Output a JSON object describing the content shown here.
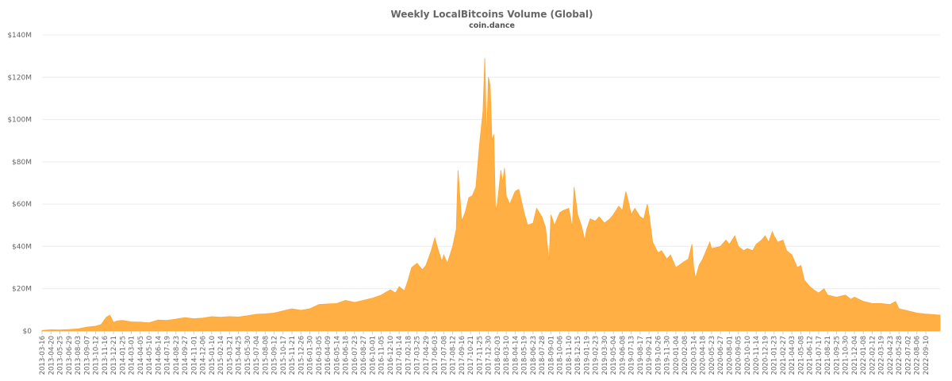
{
  "chart_data": {
    "type": "area",
    "title": "Weekly LocalBitcoins Volume (Global)",
    "subtitle": "coin.dance",
    "xlabel": "",
    "ylabel": "",
    "ylim": [
      0,
      140000000
    ],
    "yticks": [
      {
        "value": 0,
        "label": "$0"
      },
      {
        "value": 20000000,
        "label": "$20M"
      },
      {
        "value": 40000000,
        "label": "$40M"
      },
      {
        "value": 60000000,
        "label": "$60M"
      },
      {
        "value": 80000000,
        "label": "$80M"
      },
      {
        "value": 100000000,
        "label": "$100M"
      },
      {
        "value": 120000000,
        "label": "$120M"
      },
      {
        "value": 140000000,
        "label": "$140M"
      }
    ],
    "xlim": [
      "2013-03-16",
      "2022-11-05"
    ],
    "grid": true,
    "legend": "none",
    "color": "#FFA833",
    "xticks": [
      "2013-03-16",
      "2013-04-20",
      "2013-05-25",
      "2013-06-29",
      "2013-08-03",
      "2013-09-07",
      "2013-10-12",
      "2013-11-16",
      "2013-12-21",
      "2014-01-25",
      "2014-03-01",
      "2014-04-05",
      "2014-05-10",
      "2014-06-14",
      "2014-07-19",
      "2014-08-23",
      "2014-09-27",
      "2014-11-01",
      "2014-12-06",
      "2015-01-10",
      "2015-02-14",
      "2015-03-21",
      "2015-04-25",
      "2015-05-30",
      "2015-07-04",
      "2015-08-08",
      "2015-09-12",
      "2015-10-17",
      "2015-11-21",
      "2015-12-26",
      "2016-01-30",
      "2016-03-05",
      "2016-04-09",
      "2016-05-14",
      "2016-06-18",
      "2016-07-23",
      "2016-08-27",
      "2016-10-01",
      "2016-11-05",
      "2016-12-10",
      "2017-01-14",
      "2017-02-18",
      "2017-03-25",
      "2017-04-29",
      "2017-06-03",
      "2017-07-08",
      "2017-08-12",
      "2017-09-16",
      "2017-10-21",
      "2017-11-25",
      "2017-12-30",
      "2018-02-03",
      "2018-03-10",
      "2018-04-14",
      "2018-05-19",
      "2018-06-23",
      "2018-07-28",
      "2018-09-01",
      "2018-10-06",
      "2018-11-10",
      "2018-12-15",
      "2019-01-19",
      "2019-02-23",
      "2019-03-30",
      "2019-05-04",
      "2019-06-08",
      "2019-07-13",
      "2019-08-17",
      "2019-09-21",
      "2019-10-26",
      "2019-11-30",
      "2020-01-04",
      "2020-02-08",
      "2020-03-14",
      "2020-04-18",
      "2020-05-23",
      "2020-06-27",
      "2020-08-01",
      "2020-09-05",
      "2020-10-10",
      "2020-11-14",
      "2020-12-19",
      "2021-01-23",
      "2021-02-27",
      "2021-04-03",
      "2021-05-08",
      "2021-06-12",
      "2021-07-17",
      "2021-08-21",
      "2021-09-25",
      "2021-10-30",
      "2021-12-04",
      "2022-01-08",
      "2022-02-12",
      "2022-03-19",
      "2022-04-23",
      "2022-05-28",
      "2022-07-02",
      "2022-08-06",
      "2022-09-10"
    ],
    "series": [
      {
        "values": [
          [
            "2013-03-16",
            300000
          ],
          [
            "2013-04-20",
            600000
          ],
          [
            "2013-05-25",
            500000
          ],
          [
            "2013-06-29",
            700000
          ],
          [
            "2013-08-03",
            1000000
          ],
          [
            "2013-09-07",
            1800000
          ],
          [
            "2013-10-12",
            2300000
          ],
          [
            "2013-11-02",
            3000000
          ],
          [
            "2013-11-23",
            6500000
          ],
          [
            "2013-12-07",
            7500000
          ],
          [
            "2013-12-21",
            4000000
          ],
          [
            "2014-01-04",
            4800000
          ],
          [
            "2014-01-25",
            5000000
          ],
          [
            "2014-03-01",
            4300000
          ],
          [
            "2014-04-05",
            4200000
          ],
          [
            "2014-05-10",
            3900000
          ],
          [
            "2014-06-14",
            5200000
          ],
          [
            "2014-07-19",
            5000000
          ],
          [
            "2014-08-23",
            5600000
          ],
          [
            "2014-09-27",
            6300000
          ],
          [
            "2014-11-01",
            5800000
          ],
          [
            "2014-12-06",
            6100000
          ],
          [
            "2015-01-10",
            6800000
          ],
          [
            "2015-02-14",
            6500000
          ],
          [
            "2015-03-21",
            6800000
          ],
          [
            "2015-04-25",
            6600000
          ],
          [
            "2015-05-30",
            7200000
          ],
          [
            "2015-07-04",
            7900000
          ],
          [
            "2015-08-08",
            8100000
          ],
          [
            "2015-09-12",
            8500000
          ],
          [
            "2015-10-17",
            9500000
          ],
          [
            "2015-11-21",
            10500000
          ],
          [
            "2015-12-26",
            9800000
          ],
          [
            "2016-01-30",
            10500000
          ],
          [
            "2016-03-05",
            12500000
          ],
          [
            "2016-04-09",
            12800000
          ],
          [
            "2016-05-14",
            13000000
          ],
          [
            "2016-06-18",
            14500000
          ],
          [
            "2016-07-23",
            13500000
          ],
          [
            "2016-08-27",
            14500000
          ],
          [
            "2016-10-01",
            15500000
          ],
          [
            "2016-11-05",
            17000000
          ],
          [
            "2016-12-10",
            19500000
          ],
          [
            "2016-12-31",
            18000000
          ],
          [
            "2017-01-14",
            21000000
          ],
          [
            "2017-02-04",
            19000000
          ],
          [
            "2017-02-18",
            24000000
          ],
          [
            "2017-03-04",
            30000000
          ],
          [
            "2017-03-25",
            32000000
          ],
          [
            "2017-04-15",
            29000000
          ],
          [
            "2017-04-29",
            31000000
          ],
          [
            "2017-05-20",
            38000000
          ],
          [
            "2017-06-03",
            44000000
          ],
          [
            "2017-06-17",
            38000000
          ],
          [
            "2017-07-01",
            33000000
          ],
          [
            "2017-07-08",
            36000000
          ],
          [
            "2017-07-22",
            32000000
          ],
          [
            "2017-08-12",
            40000000
          ],
          [
            "2017-08-26",
            48000000
          ],
          [
            "2017-09-02",
            76000000
          ],
          [
            "2017-09-16",
            52000000
          ],
          [
            "2017-09-30",
            56000000
          ],
          [
            "2017-10-14",
            63000000
          ],
          [
            "2017-10-28",
            64000000
          ],
          [
            "2017-11-11",
            68000000
          ],
          [
            "2017-11-25",
            88000000
          ],
          [
            "2017-12-09",
            104000000
          ],
          [
            "2017-12-16",
            129000000
          ],
          [
            "2017-12-23",
            90000000
          ],
          [
            "2017-12-30",
            120000000
          ],
          [
            "2018-01-06",
            116000000
          ],
          [
            "2018-01-13",
            90000000
          ],
          [
            "2018-01-20",
            93000000
          ],
          [
            "2018-01-27",
            57000000
          ],
          [
            "2018-02-03",
            60000000
          ],
          [
            "2018-02-17",
            76000000
          ],
          [
            "2018-02-24",
            70000000
          ],
          [
            "2018-03-03",
            77000000
          ],
          [
            "2018-03-10",
            64000000
          ],
          [
            "2018-03-24",
            60000000
          ],
          [
            "2018-04-14",
            66000000
          ],
          [
            "2018-04-28",
            67000000
          ],
          [
            "2018-05-19",
            56000000
          ],
          [
            "2018-06-02",
            50000000
          ],
          [
            "2018-06-23",
            51000000
          ],
          [
            "2018-07-07",
            58000000
          ],
          [
            "2018-07-28",
            54000000
          ],
          [
            "2018-08-11",
            49000000
          ],
          [
            "2018-08-25",
            33000000
          ],
          [
            "2018-09-01",
            55000000
          ],
          [
            "2018-09-15",
            50000000
          ],
          [
            "2018-10-06",
            56000000
          ],
          [
            "2018-10-20",
            57000000
          ],
          [
            "2018-11-10",
            58000000
          ],
          [
            "2018-11-24",
            49000000
          ],
          [
            "2018-12-01",
            68000000
          ],
          [
            "2018-12-15",
            55000000
          ],
          [
            "2018-12-29",
            50000000
          ],
          [
            "2019-01-12",
            43000000
          ],
          [
            "2019-01-19",
            48000000
          ],
          [
            "2019-02-02",
            53000000
          ],
          [
            "2019-02-23",
            52000000
          ],
          [
            "2019-03-09",
            54000000
          ],
          [
            "2019-03-30",
            51000000
          ],
          [
            "2019-04-20",
            53000000
          ],
          [
            "2019-05-04",
            55000000
          ],
          [
            "2019-05-25",
            59000000
          ],
          [
            "2019-06-08",
            57000000
          ],
          [
            "2019-06-22",
            66000000
          ],
          [
            "2019-07-06",
            59000000
          ],
          [
            "2019-07-13",
            55000000
          ],
          [
            "2019-07-27",
            58000000
          ],
          [
            "2019-08-17",
            54000000
          ],
          [
            "2019-08-31",
            53000000
          ],
          [
            "2019-09-14",
            60000000
          ],
          [
            "2019-09-21",
            55000000
          ],
          [
            "2019-10-05",
            42000000
          ],
          [
            "2019-10-26",
            37000000
          ],
          [
            "2019-11-09",
            38000000
          ],
          [
            "2019-11-30",
            34000000
          ],
          [
            "2019-12-14",
            36000000
          ],
          [
            "2020-01-04",
            30000000
          ],
          [
            "2020-02-08",
            33000000
          ],
          [
            "2020-02-22",
            34000000
          ],
          [
            "2020-03-07",
            41000000
          ],
          [
            "2020-03-14",
            30000000
          ],
          [
            "2020-03-21",
            25000000
          ],
          [
            "2020-04-04",
            31000000
          ],
          [
            "2020-04-18",
            34000000
          ],
          [
            "2020-05-02",
            38000000
          ],
          [
            "2020-05-16",
            42000000
          ],
          [
            "2020-05-23",
            39000000
          ],
          [
            "2020-06-27",
            40000000
          ],
          [
            "2020-07-18",
            43000000
          ],
          [
            "2020-08-01",
            41000000
          ],
          [
            "2020-08-22",
            45000000
          ],
          [
            "2020-09-05",
            40000000
          ],
          [
            "2020-09-26",
            38000000
          ],
          [
            "2020-10-10",
            39000000
          ],
          [
            "2020-10-31",
            38000000
          ],
          [
            "2020-11-14",
            41000000
          ],
          [
            "2020-12-05",
            43000000
          ],
          [
            "2020-12-19",
            45000000
          ],
          [
            "2021-01-02",
            42000000
          ],
          [
            "2021-01-16",
            47000000
          ],
          [
            "2021-01-23",
            45000000
          ],
          [
            "2021-02-06",
            42000000
          ],
          [
            "2021-02-27",
            43000000
          ],
          [
            "2021-03-13",
            38000000
          ],
          [
            "2021-04-03",
            36000000
          ],
          [
            "2021-04-24",
            30000000
          ],
          [
            "2021-05-08",
            31000000
          ],
          [
            "2021-05-22",
            24000000
          ],
          [
            "2021-06-12",
            21000000
          ],
          [
            "2021-07-03",
            19000000
          ],
          [
            "2021-07-17",
            18000000
          ],
          [
            "2021-08-07",
            20000000
          ],
          [
            "2021-08-21",
            17000000
          ],
          [
            "2021-09-25",
            16000000
          ],
          [
            "2021-10-30",
            17000000
          ],
          [
            "2021-11-20",
            15000000
          ],
          [
            "2021-12-04",
            16000000
          ],
          [
            "2022-01-08",
            14000000
          ],
          [
            "2022-02-12",
            13000000
          ],
          [
            "2022-03-19",
            13000000
          ],
          [
            "2022-04-23",
            12500000
          ],
          [
            "2022-05-14",
            14000000
          ],
          [
            "2022-05-28",
            10500000
          ],
          [
            "2022-07-02",
            9500000
          ],
          [
            "2022-08-06",
            8500000
          ],
          [
            "2022-09-10",
            8000000
          ],
          [
            "2022-10-08",
            7800000
          ],
          [
            "2022-11-05",
            7500000
          ]
        ]
      }
    ]
  }
}
